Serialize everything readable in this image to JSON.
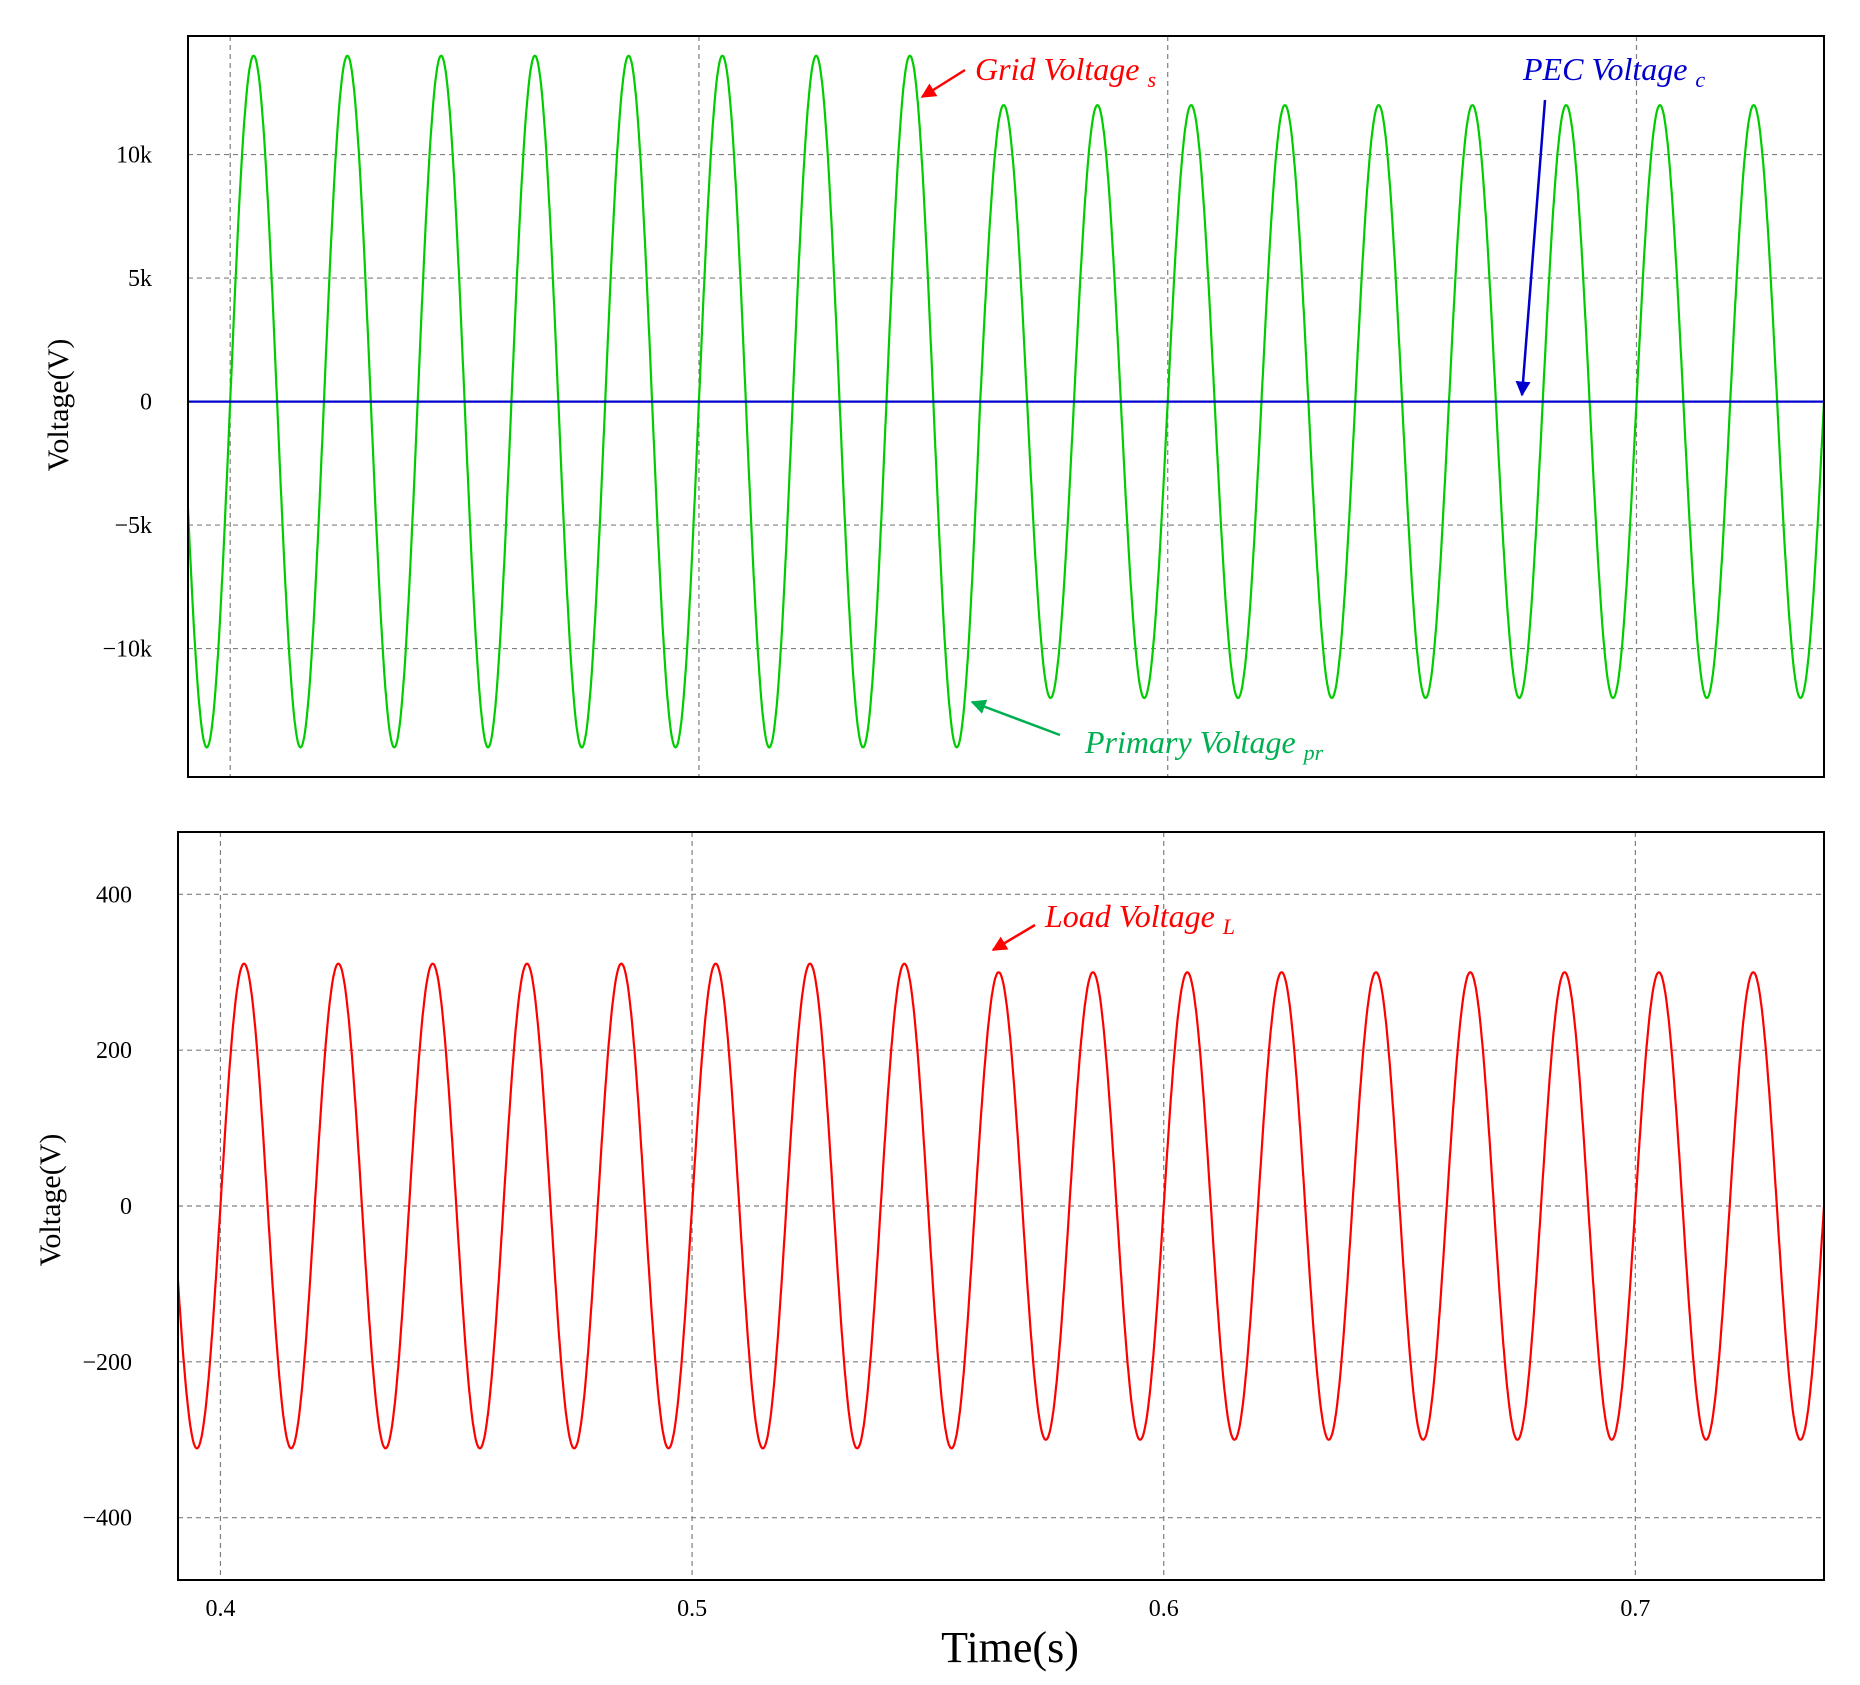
{
  "x_axis": {
    "title": "Time(s)",
    "range": [
      0.391,
      0.74
    ],
    "ticks": [
      0.4,
      0.5,
      0.6,
      0.7
    ],
    "tick_labels": [
      "0.4",
      "0.5",
      "0.6",
      "0.7"
    ]
  },
  "colors": {
    "grid_voltage": "#ff0000",
    "pec_voltage": "#0000cc",
    "primary_voltage": "#00cc00",
    "primary_label": "#00b050",
    "load_voltage": "#ff0000"
  },
  "chart_data": [
    {
      "type": "line",
      "ylabel": "Voltage(V)",
      "ylim": [
        -15200,
        14800
      ],
      "yticks": [
        10000,
        5000,
        0,
        -5000,
        -10000
      ],
      "ytick_labels": [
        "10k",
        "5k",
        "0",
        "−5k",
        "−10k"
      ],
      "grid": true,
      "frequency_hz": 50,
      "series": [
        {
          "name": "Primary Voltage Vpr",
          "waveform": "sine",
          "segments": [
            {
              "t_start": 0.391,
              "t_end": 0.56,
              "amplitude": 14000
            },
            {
              "t_start": 0.56,
              "t_end": 0.74,
              "amplitude": 12000
            }
          ]
        },
        {
          "name": "PEC Voltage Vc",
          "waveform": "constant",
          "value": 0
        }
      ],
      "annotations": [
        {
          "text": "Grid Voltage",
          "sub": "s"
        },
        {
          "text": "PEC Voltage",
          "sub": "c"
        },
        {
          "text": "Primary Voltage",
          "sub": "pr"
        }
      ]
    },
    {
      "type": "line",
      "ylabel": "Voltage(V)",
      "ylim": [
        -480,
        480
      ],
      "yticks": [
        400,
        200,
        0,
        -200,
        -400
      ],
      "ytick_labels": [
        "400",
        "200",
        "0",
        "−200",
        "−400"
      ],
      "grid": true,
      "frequency_hz": 50,
      "series": [
        {
          "name": "Load Voltage VL",
          "waveform": "sine",
          "segments": [
            {
              "t_start": 0.391,
              "t_end": 0.56,
              "amplitude": 311
            },
            {
              "t_start": 0.56,
              "t_end": 0.74,
              "amplitude": 300
            }
          ]
        }
      ],
      "annotations": [
        {
          "text": "Load Voltage",
          "sub": "L"
        }
      ]
    }
  ]
}
